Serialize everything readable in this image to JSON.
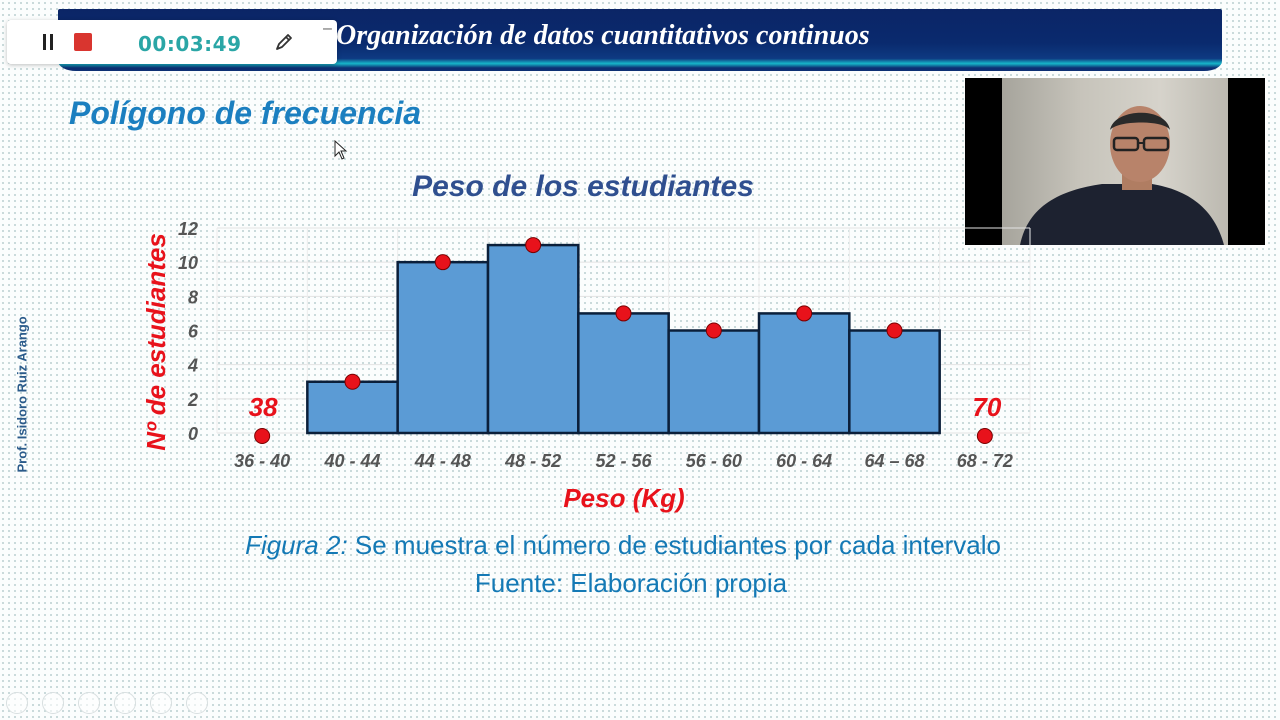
{
  "slide": {
    "banner_title": "Organización de datos cuantitativos continuos",
    "section_title": "Polígono de frecuencia",
    "author": "Prof. Isidoro Ruiz Arango",
    "caption_figure": "Figura 2:",
    "caption_text": " Se muestra el número de estudiantes por cada intervalo",
    "caption_source": "Fuente: Elaboración propia"
  },
  "recorder": {
    "time": "00:03:49",
    "pause_icon": "pause-icon",
    "stop_icon": "stop-icon",
    "pen_icon": "pen-icon",
    "minimize_icon": "minimize-icon"
  },
  "webcam": {
    "description_icon": "presenter-video"
  },
  "chart_data": {
    "type": "bar",
    "title": "Peso de los estudiantes",
    "xlabel": "Peso (Kg)",
    "ylabel": "Nº de estudiantes",
    "ylim": [
      0,
      12
    ],
    "yticks": [
      0,
      2,
      4,
      6,
      8,
      10,
      12
    ],
    "categories": [
      "36 - 40",
      "40 - 44",
      "44 - 48",
      "48 - 52",
      "52 - 56",
      "56 - 60",
      "60 - 64",
      "64 – 68",
      "68 - 72"
    ],
    "values": [
      0,
      3,
      10,
      11,
      7,
      6,
      7,
      6,
      0
    ],
    "polygon_points": [
      {
        "category": "36 - 40",
        "value": 0,
        "label": "38"
      },
      {
        "category": "40 - 44",
        "value": 3
      },
      {
        "category": "44 - 48",
        "value": 10
      },
      {
        "category": "48 - 52",
        "value": 11
      },
      {
        "category": "52 - 56",
        "value": 7
      },
      {
        "category": "56 - 60",
        "value": 6
      },
      {
        "category": "60 - 64",
        "value": 7
      },
      {
        "category": "64 – 68",
        "value": 6
      },
      {
        "category": "68 - 72",
        "value": 0,
        "label": "70"
      }
    ],
    "bar_color": "#5b9bd5",
    "bar_border": "#0b1f3a",
    "point_color": "#e8121b",
    "title_color": "#2f4f8f",
    "label_color": "#e8121b",
    "grid": true
  }
}
